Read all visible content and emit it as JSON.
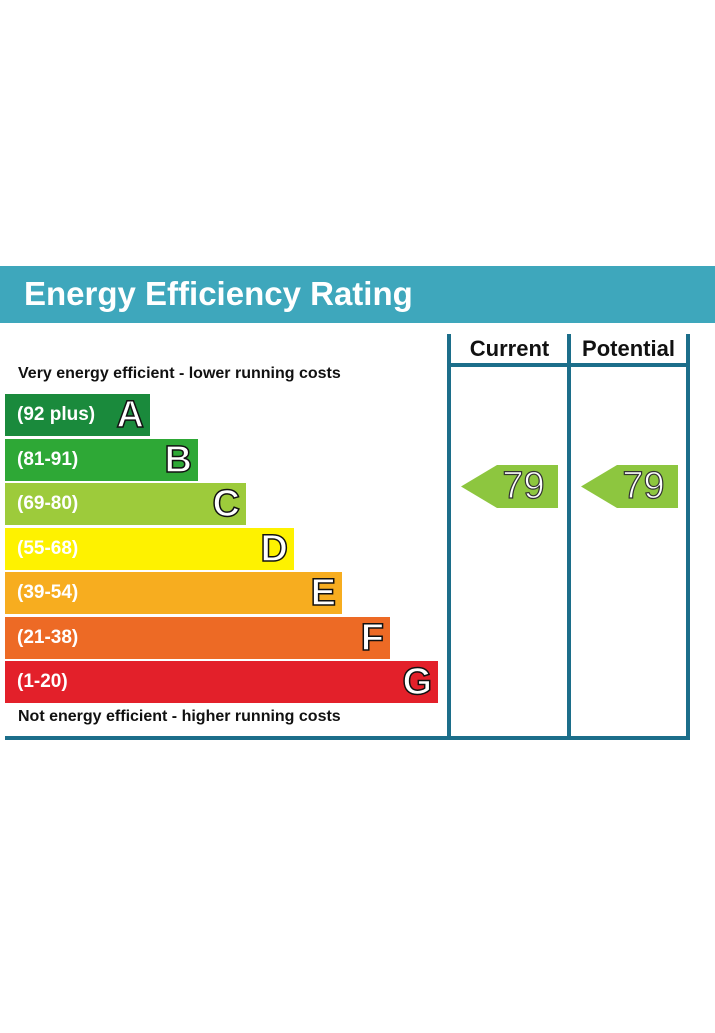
{
  "title": "Energy Efficiency Rating",
  "columns": {
    "current": "Current",
    "potential": "Potential"
  },
  "notes": {
    "top": "Very energy efficient - lower running costs",
    "bottom": "Not energy efficient - higher running costs"
  },
  "colors": {
    "header": "#3ea7bc",
    "frame": "#1c6e8a",
    "arrow": "#8dc63f"
  },
  "chart_data": {
    "type": "bar",
    "title": "Energy Efficiency Rating",
    "categories": [
      "A",
      "B",
      "C",
      "D",
      "E",
      "F",
      "G"
    ],
    "bands": [
      {
        "letter": "A",
        "range": "(92 plus)",
        "color": "#1a8a3c"
      },
      {
        "letter": "B",
        "range": "(81-91)",
        "color": "#2ea836"
      },
      {
        "letter": "C",
        "range": "(69-80)",
        "color": "#9dcb3b"
      },
      {
        "letter": "D",
        "range": "(55-68)",
        "color": "#fef200"
      },
      {
        "letter": "E",
        "range": "(39-54)",
        "color": "#f7ad1f"
      },
      {
        "letter": "F",
        "range": "(21-38)",
        "color": "#ed6a25"
      },
      {
        "letter": "G",
        "range": "(1-20)",
        "color": "#e3202a"
      }
    ],
    "current": {
      "value": "79",
      "band": "C"
    },
    "potential": {
      "value": "79",
      "band": "C"
    }
  }
}
